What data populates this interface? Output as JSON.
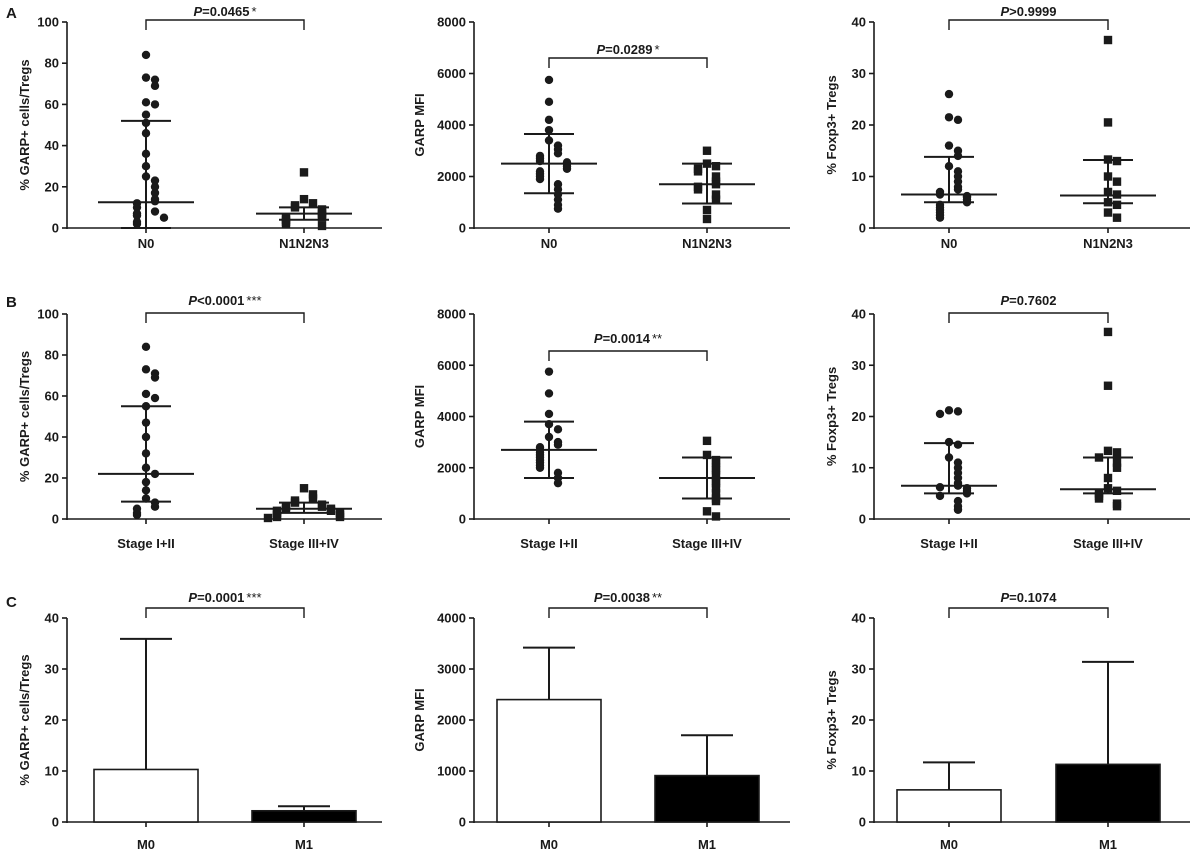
{
  "panel_labels": [
    "A",
    "B",
    "C"
  ],
  "chart_data": [
    {
      "type": "scatter",
      "row": "A",
      "col": 0,
      "ylabel": "% GARP+ cells/Tregs",
      "ylim": [
        0,
        100
      ],
      "yticks": [
        "0",
        "20",
        "40",
        "60",
        "80",
        "100"
      ],
      "categories": [
        "N0",
        "N1N2N3"
      ],
      "markers": [
        "circle",
        "square"
      ],
      "groups": [
        {
          "name": "N0",
          "median": 12.5,
          "upper": 52,
          "lower": 0,
          "points": [
            84,
            73,
            72,
            69,
            61,
            60,
            55,
            51,
            46,
            36,
            30,
            25,
            23,
            20,
            17,
            14,
            13,
            12,
            10,
            8,
            7,
            6,
            5,
            3,
            2
          ]
        },
        {
          "name": "N1N2N3",
          "median": 7,
          "upper": 10,
          "lower": 4,
          "points": [
            27,
            14,
            12,
            11,
            10,
            9,
            8,
            7,
            6,
            5,
            5,
            4,
            3,
            2,
            1
          ]
        }
      ],
      "p_prefix": "P",
      "p_value": "=0.0465",
      "stars": "*"
    },
    {
      "type": "scatter",
      "row": "A",
      "col": 1,
      "ylabel": "GARP MFI",
      "ylim": [
        0,
        8000
      ],
      "yticks": [
        "0",
        "2000",
        "4000",
        "6000",
        "8000"
      ],
      "categories": [
        "N0",
        "N1N2N3"
      ],
      "markers": [
        "circle",
        "square"
      ],
      "groups": [
        {
          "name": "N0",
          "median": 2500,
          "upper": 3650,
          "lower": 1350,
          "points": [
            5750,
            4900,
            4200,
            3800,
            3400,
            3200,
            3050,
            2900,
            2800,
            2700,
            2600,
            2550,
            2500,
            2400,
            2300,
            2200,
            2100,
            2000,
            1900,
            1700,
            1500,
            1300,
            1100,
            900,
            750
          ]
        },
        {
          "name": "N1N2N3",
          "median": 1700,
          "upper": 2500,
          "lower": 950,
          "points": [
            3000,
            2500,
            2400,
            2300,
            2200,
            2000,
            1800,
            1700,
            1600,
            1500,
            1300,
            1100,
            700,
            350
          ]
        }
      ],
      "p_prefix": "P",
      "p_value": "=0.0289",
      "stars": "*"
    },
    {
      "type": "scatter",
      "row": "A",
      "col": 2,
      "ylabel": "% Foxp3+ Tregs",
      "ylim": [
        0,
        40
      ],
      "yticks": [
        "0",
        "10",
        "20",
        "30",
        "40"
      ],
      "categories": [
        "N0",
        "N1N2N3"
      ],
      "markers": [
        "circle",
        "square"
      ],
      "groups": [
        {
          "name": "N0",
          "median": 6.5,
          "upper": 13.8,
          "lower": 5,
          "points": [
            26,
            21.5,
            21,
            16,
            15,
            14,
            12,
            11,
            10,
            9,
            8,
            7.5,
            7,
            6.5,
            6.2,
            6,
            5.5,
            5,
            4.5,
            4,
            3.5,
            3,
            2.5,
            2
          ]
        },
        {
          "name": "N1N2N3",
          "median": 6.3,
          "upper": 13.2,
          "lower": 4.8,
          "points": [
            36.5,
            20.5,
            13.3,
            13,
            10,
            9,
            7,
            6.5,
            5,
            4.5,
            3,
            2
          ]
        }
      ],
      "p_prefix": "P",
      "p_value": ">0.9999",
      "stars": ""
    },
    {
      "type": "scatter",
      "row": "B",
      "col": 0,
      "ylabel": "% GARP+ cells/Tregs",
      "ylim": [
        0,
        100
      ],
      "yticks": [
        "0",
        "20",
        "40",
        "60",
        "80",
        "100"
      ],
      "categories": [
        "Stage I+II",
        "Stage III+IV"
      ],
      "markers": [
        "circle",
        "square"
      ],
      "groups": [
        {
          "name": "Stage I+II",
          "median": 22,
          "upper": 55,
          "lower": 8.5,
          "points": [
            84,
            73,
            71,
            69,
            61,
            59,
            55,
            47,
            40,
            32,
            25,
            22,
            18,
            14,
            10,
            8,
            6,
            5,
            3,
            2
          ]
        },
        {
          "name": "Stage III+IV",
          "median": 5,
          "upper": 8,
          "lower": 3,
          "points": [
            15,
            12,
            10,
            9,
            8,
            7,
            6,
            6,
            5,
            5,
            4,
            4,
            3,
            3,
            2,
            2,
            1,
            1,
            0.5
          ]
        }
      ],
      "p_prefix": "P",
      "p_value": "<0.0001",
      "stars": "***"
    },
    {
      "type": "scatter",
      "row": "B",
      "col": 1,
      "ylabel": "GARP MFI",
      "ylim": [
        0,
        8000
      ],
      "yticks": [
        "0",
        "2000",
        "4000",
        "6000",
        "8000"
      ],
      "categories": [
        "Stage I+II",
        "Stage III+IV"
      ],
      "markers": [
        "circle",
        "square"
      ],
      "groups": [
        {
          "name": "Stage I+II",
          "median": 2700,
          "upper": 3800,
          "lower": 1600,
          "points": [
            5750,
            4900,
            4100,
            3700,
            3500,
            3200,
            3000,
            2900,
            2800,
            2700,
            2600,
            2500,
            2400,
            2300,
            2200,
            2100,
            2000,
            1800,
            1600,
            1400
          ]
        },
        {
          "name": "Stage III+IV",
          "median": 1600,
          "upper": 2400,
          "lower": 800,
          "points": [
            3050,
            2500,
            2300,
            2200,
            2000,
            1900,
            1700,
            1500,
            1400,
            1200,
            1000,
            800,
            700,
            300,
            100
          ]
        }
      ],
      "p_prefix": "P",
      "p_value": "=0.0014",
      "stars": "**"
    },
    {
      "type": "scatter",
      "row": "B",
      "col": 2,
      "ylabel": "% Foxp3+ Tregs",
      "ylim": [
        0,
        40
      ],
      "yticks": [
        "0",
        "10",
        "20",
        "30",
        "40"
      ],
      "categories": [
        "Stage I+II",
        "Stage III+IV"
      ],
      "markers": [
        "circle",
        "square"
      ],
      "groups": [
        {
          "name": "Stage I+II",
          "median": 6.5,
          "upper": 14.8,
          "lower": 5,
          "points": [
            21.2,
            21,
            20.5,
            15,
            14.5,
            12,
            11,
            10,
            9,
            8,
            7,
            6.5,
            6.2,
            6,
            5.5,
            5,
            4.5,
            3.5,
            2.5,
            1.8
          ]
        },
        {
          "name": "Stage III+IV",
          "median": 5.8,
          "upper": 12,
          "lower": 5,
          "points": [
            36.5,
            26,
            13.3,
            13,
            12,
            11,
            10,
            8,
            6,
            5.5,
            5,
            4.5,
            4,
            3,
            2.5
          ]
        }
      ],
      "p_prefix": "P",
      "p_value": "=0.7602",
      "stars": ""
    },
    {
      "type": "bar",
      "row": "C",
      "col": 0,
      "ylabel": "% GARP+ cells/Tregs",
      "ylim": [
        0,
        40
      ],
      "yticks": [
        "0",
        "10",
        "20",
        "30",
        "40"
      ],
      "categories": [
        "M0",
        "M1"
      ],
      "values": [
        10.3,
        2.2
      ],
      "errors_upper": [
        35.9,
        3.1
      ],
      "fills": [
        "#ffffff",
        "#000000"
      ],
      "p_prefix": "P",
      "p_value": "=0.0001",
      "stars": "***"
    },
    {
      "type": "bar",
      "row": "C",
      "col": 1,
      "ylabel": "GARP MFI",
      "ylim": [
        0,
        4000
      ],
      "yticks": [
        "0",
        "1000",
        "2000",
        "3000",
        "4000"
      ],
      "categories": [
        "M0",
        "M1"
      ],
      "values": [
        2400,
        910
      ],
      "errors_upper": [
        3420,
        1700
      ],
      "fills": [
        "#ffffff",
        "#000000"
      ],
      "p_prefix": "P",
      "p_value": "=0.0038",
      "stars": "**"
    },
    {
      "type": "bar",
      "row": "C",
      "col": 2,
      "ylabel": "% Foxp3+ Tregs",
      "ylim": [
        0,
        40
      ],
      "yticks": [
        "0",
        "10",
        "20",
        "30",
        "40"
      ],
      "categories": [
        "M0",
        "M1"
      ],
      "values": [
        6.3,
        11.3
      ],
      "errors_upper": [
        11.7,
        31.4
      ],
      "fills": [
        "#ffffff",
        "#000000"
      ],
      "p_prefix": "P",
      "p_value": "=0.1074",
      "stars": ""
    }
  ]
}
